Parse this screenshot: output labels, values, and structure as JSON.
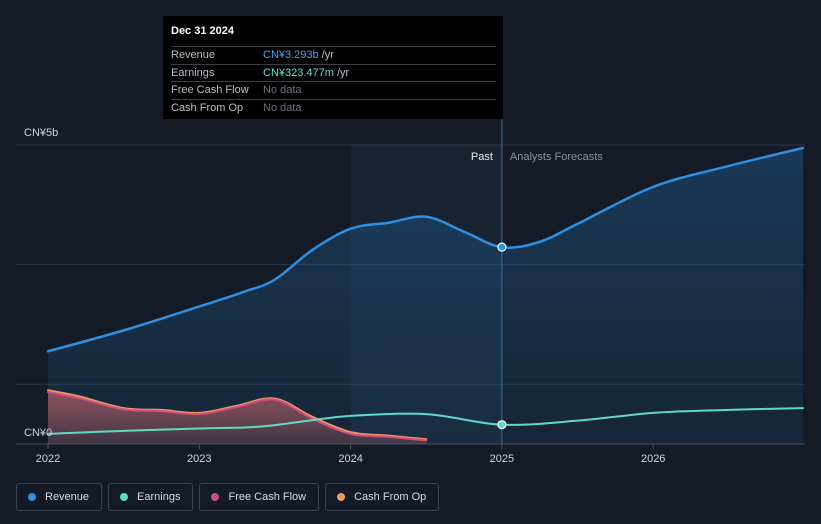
{
  "chart_data": {
    "type": "area",
    "y_unit_prefix": "CN¥",
    "y_axis_labels": [
      "CN¥5b",
      "CN¥0"
    ],
    "ylim": [
      0,
      5
    ],
    "xlim": [
      2022,
      2027
    ],
    "x_ticks": [
      {
        "value": 2022,
        "label": "2022"
      },
      {
        "value": 2023,
        "label": "2023"
      },
      {
        "value": 2024,
        "label": "2024"
      },
      {
        "value": 2025,
        "label": "2025"
      },
      {
        "value": 2026,
        "label": "2026"
      }
    ],
    "divider_x": 2025,
    "past_band_start": 2024,
    "past_label": "Past",
    "forecast_label": "Analysts Forecasts",
    "series": [
      {
        "name": "Revenue",
        "color": "#2e8fe3",
        "fill": true,
        "points": [
          [
            2022,
            1.55
          ],
          [
            2022.5,
            1.9
          ],
          [
            2023,
            2.3
          ],
          [
            2023.3,
            2.55
          ],
          [
            2023.5,
            2.75
          ],
          [
            2023.75,
            3.25
          ],
          [
            2024,
            3.6
          ],
          [
            2024.25,
            3.7
          ],
          [
            2024.5,
            3.8
          ],
          [
            2024.75,
            3.55
          ],
          [
            2025,
            3.29
          ],
          [
            2025.25,
            3.38
          ],
          [
            2025.5,
            3.68
          ],
          [
            2026,
            4.3
          ],
          [
            2026.5,
            4.65
          ],
          [
            2026.99,
            4.95
          ]
        ]
      },
      {
        "name": "Earnings",
        "color": "#5fd9c5",
        "fill": false,
        "points": [
          [
            2022,
            0.17
          ],
          [
            2022.5,
            0.22
          ],
          [
            2023,
            0.26
          ],
          [
            2023.4,
            0.29
          ],
          [
            2023.75,
            0.4
          ],
          [
            2024,
            0.47
          ],
          [
            2024.5,
            0.5
          ],
          [
            2025,
            0.323
          ],
          [
            2025.5,
            0.39
          ],
          [
            2026,
            0.52
          ],
          [
            2026.5,
            0.57
          ],
          [
            2026.99,
            0.6
          ]
        ]
      },
      {
        "name": "Free Cash Flow",
        "color": "#d44f7c",
        "fill": true,
        "points": [
          [
            2022,
            0.87
          ],
          [
            2022.2,
            0.77
          ],
          [
            2022.5,
            0.58
          ],
          [
            2022.75,
            0.55
          ],
          [
            2023,
            0.5
          ],
          [
            2023.25,
            0.62
          ],
          [
            2023.5,
            0.74
          ],
          [
            2023.75,
            0.42
          ],
          [
            2024,
            0.17
          ],
          [
            2024.25,
            0.12
          ],
          [
            2024.5,
            0.06
          ]
        ]
      },
      {
        "name": "Cash From Op",
        "color": "#e89a64",
        "fill": true,
        "points": [
          [
            2022,
            0.9
          ],
          [
            2022.2,
            0.8
          ],
          [
            2022.5,
            0.6
          ],
          [
            2022.75,
            0.57
          ],
          [
            2023,
            0.52
          ],
          [
            2023.25,
            0.64
          ],
          [
            2023.5,
            0.76
          ],
          [
            2023.75,
            0.45
          ],
          [
            2024,
            0.2
          ],
          [
            2024.25,
            0.14
          ],
          [
            2024.5,
            0.08
          ]
        ]
      }
    ],
    "marker_x": 2025,
    "markers": [
      {
        "series": "Revenue",
        "x": 2025,
        "y": 3.293
      },
      {
        "series": "Earnings",
        "x": 2025,
        "y": 0.323
      }
    ]
  },
  "tooltip": {
    "date": "Dec 31 2024",
    "rows": [
      {
        "label": "Revenue",
        "value": "CN¥3.293b",
        "unit": "/yr"
      },
      {
        "label": "Earnings",
        "value": "CN¥323.477m",
        "unit": "/yr"
      },
      {
        "label": "Free Cash Flow",
        "value": "No data"
      },
      {
        "label": "Cash From Op",
        "value": "No data"
      }
    ]
  },
  "legend": [
    {
      "label": "Revenue",
      "color": "#2e8fe3"
    },
    {
      "label": "Earnings",
      "color": "#5fd9c5"
    },
    {
      "label": "Free Cash Flow",
      "color": "#c84f7f"
    },
    {
      "label": "Cash From Op",
      "color": "#e8a15c"
    }
  ]
}
